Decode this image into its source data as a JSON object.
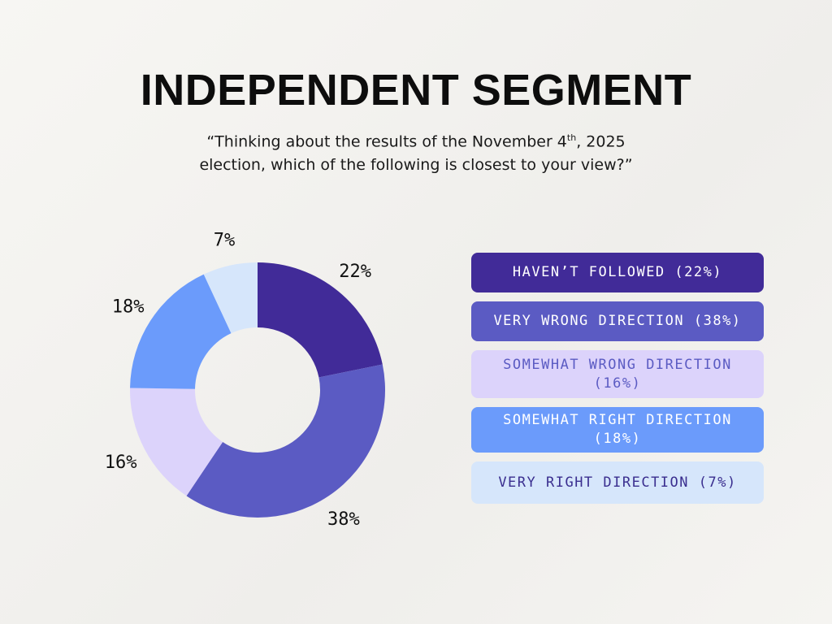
{
  "title": "INDEPENDENT SEGMENT",
  "subtitle": {
    "line1_before": "“Thinking about the results of the November 4",
    "superscript": "th",
    "line1_after": ", 2025",
    "line2": "election, which of the following is closest to your view?”"
  },
  "chart_data": {
    "type": "pie",
    "donut": true,
    "title": "INDEPENDENT SEGMENT",
    "legend_position": "right",
    "slices": [
      {
        "label": "HAVEN’T FOLLOWED (22%)",
        "value": 22,
        "data_label": "22%",
        "color": "#412B98",
        "text_color": "#ffffff"
      },
      {
        "label": "VERY WRONG DIRECTION (38%)",
        "value": 38,
        "data_label": "38%",
        "color": "#5B5BC3",
        "text_color": "#ffffff"
      },
      {
        "label": "SOMEWHAT WRONG DIRECTION (16%)",
        "value": 16,
        "data_label": "16%",
        "color": "#DCD3FB",
        "text_color": "#5B5BC3"
      },
      {
        "label": "SOMEWHAT RIGHT DIRECTION (18%)",
        "value": 18,
        "data_label": "18%",
        "color": "#6B9BFB",
        "text_color": "#ffffff"
      },
      {
        "label": "VERY RIGHT DIRECTION (7%)",
        "value": 7,
        "data_label": "7%",
        "color": "#D6E6FB",
        "text_color": "#3A2E8F"
      }
    ]
  }
}
